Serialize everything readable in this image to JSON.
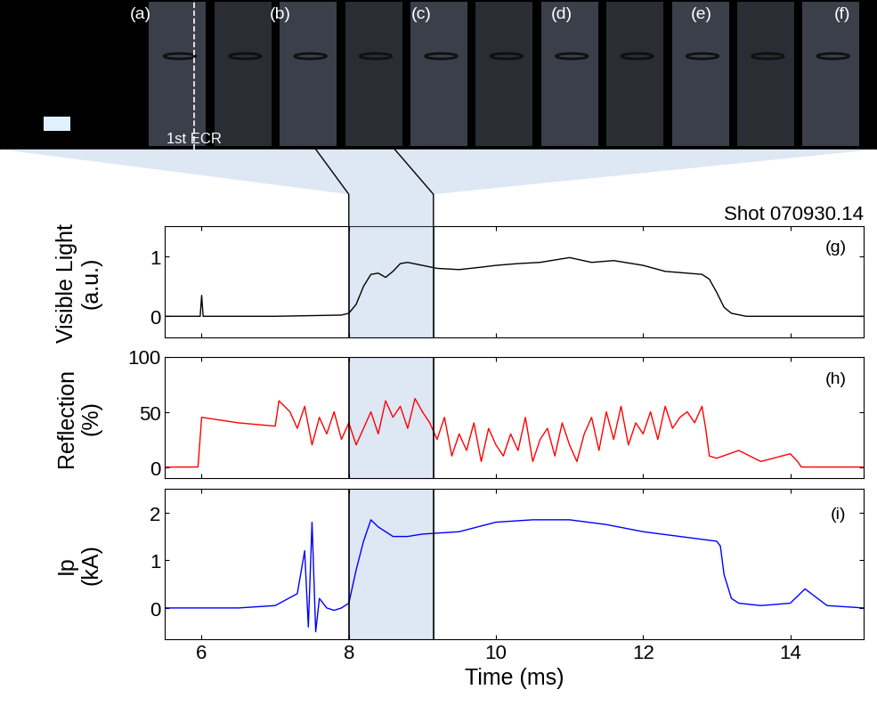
{
  "frames": {
    "labels": [
      "(a)",
      "(b)",
      "(c)",
      "(d)",
      "(e)",
      "(f)"
    ],
    "annotation": "1st ECR"
  },
  "highlight": [
    8.0,
    9.15
  ],
  "chart_data": [
    {
      "type": "line",
      "title": "Shot 070930.14",
      "annotation": "(g)",
      "y_label": "Visible Light\n(a.u.)",
      "color": "#000000",
      "tick_labels": "y",
      "x": [
        5.5,
        5.98,
        6.0,
        6.02,
        7.0,
        7.9,
        8.0,
        8.1,
        8.2,
        8.3,
        8.4,
        8.5,
        8.6,
        8.7,
        8.8,
        9.0,
        9.2,
        9.5,
        9.8,
        10.0,
        10.3,
        10.6,
        11.0,
        11.3,
        11.6,
        12.0,
        12.3,
        12.6,
        12.8,
        12.9,
        13.0,
        13.1,
        13.2,
        13.4,
        15.0
      ],
      "values": [
        0,
        0,
        0.35,
        0,
        0,
        0.02,
        0.05,
        0.2,
        0.5,
        0.7,
        0.72,
        0.65,
        0.75,
        0.88,
        0.9,
        0.85,
        0.8,
        0.78,
        0.82,
        0.85,
        0.88,
        0.9,
        0.98,
        0.9,
        0.93,
        0.85,
        0.75,
        0.72,
        0.7,
        0.62,
        0.4,
        0.15,
        0.05,
        0,
        0
      ],
      "xlim": [
        5.5,
        15
      ],
      "xticks": [
        6,
        8,
        10,
        12,
        14
      ],
      "ylim": [
        -0.35,
        1.5
      ],
      "yticks": [
        0,
        1
      ]
    },
    {
      "type": "line",
      "annotation": "(h)",
      "y_label": "Reflection\n(%)",
      "color": "#ff0000",
      "tick_labels": "y",
      "x": [
        5.5,
        5.95,
        6.0,
        6.5,
        7.0,
        7.05,
        7.2,
        7.3,
        7.4,
        7.5,
        7.6,
        7.7,
        7.8,
        7.9,
        8.0,
        8.1,
        8.2,
        8.3,
        8.4,
        8.5,
        8.6,
        8.7,
        8.8,
        8.9,
        9.0,
        9.1,
        9.2,
        9.3,
        9.4,
        9.5,
        9.6,
        9.7,
        9.8,
        9.9,
        10.0,
        10.1,
        10.2,
        10.3,
        10.4,
        10.5,
        10.6,
        10.7,
        10.8,
        10.9,
        11.0,
        11.1,
        11.2,
        11.3,
        11.4,
        11.5,
        11.6,
        11.7,
        11.8,
        11.9,
        12.0,
        12.1,
        12.2,
        12.3,
        12.4,
        12.5,
        12.6,
        12.7,
        12.8,
        12.85,
        12.9,
        13.0,
        13.3,
        13.6,
        14.0,
        14.1,
        14.15,
        15.0
      ],
      "values": [
        0,
        0,
        45,
        40,
        37,
        60,
        50,
        35,
        55,
        20,
        45,
        30,
        50,
        25,
        40,
        20,
        35,
        50,
        30,
        60,
        45,
        55,
        35,
        62,
        50,
        40,
        25,
        45,
        10,
        30,
        15,
        40,
        5,
        35,
        20,
        10,
        30,
        15,
        45,
        5,
        25,
        35,
        10,
        40,
        20,
        5,
        30,
        45,
        15,
        50,
        25,
        55,
        20,
        40,
        30,
        50,
        25,
        55,
        35,
        45,
        50,
        40,
        55,
        35,
        10,
        8,
        15,
        5,
        12,
        5,
        0,
        0
      ],
      "xlim": [
        5.5,
        15
      ],
      "xticks": [
        6,
        8,
        10,
        12,
        14
      ],
      "ylim": [
        -10,
        100
      ],
      "yticks": [
        0,
        50,
        100
      ]
    },
    {
      "type": "line",
      "annotation": "(i)",
      "y_label": "Ip\n(kA)",
      "x_label": "Time (ms)",
      "color": "#0000ff",
      "x": [
        5.5,
        6.0,
        6.5,
        7.0,
        7.3,
        7.4,
        7.45,
        7.5,
        7.55,
        7.6,
        7.7,
        7.8,
        7.9,
        8.0,
        8.1,
        8.2,
        8.3,
        8.4,
        8.6,
        8.8,
        9.0,
        9.5,
        10.0,
        10.5,
        11.0,
        11.5,
        12.0,
        12.5,
        13.0,
        13.05,
        13.1,
        13.2,
        13.3,
        13.6,
        14.0,
        14.2,
        14.5,
        15.0
      ],
      "values": [
        0,
        0,
        0,
        0.05,
        0.3,
        1.2,
        -0.4,
        1.8,
        -0.5,
        0.2,
        0,
        -0.05,
        0,
        0.1,
        0.8,
        1.4,
        1.85,
        1.7,
        1.5,
        1.5,
        1.55,
        1.6,
        1.8,
        1.85,
        1.85,
        1.75,
        1.6,
        1.5,
        1.4,
        1.3,
        0.7,
        0.2,
        0.1,
        0.05,
        0.1,
        0.4,
        0.05,
        0
      ],
      "xlim": [
        5.5,
        15
      ],
      "xticks": [
        6,
        8,
        10,
        12,
        14
      ],
      "ylim": [
        -0.65,
        2.5
      ],
      "yticks": [
        0,
        1,
        2
      ]
    }
  ]
}
